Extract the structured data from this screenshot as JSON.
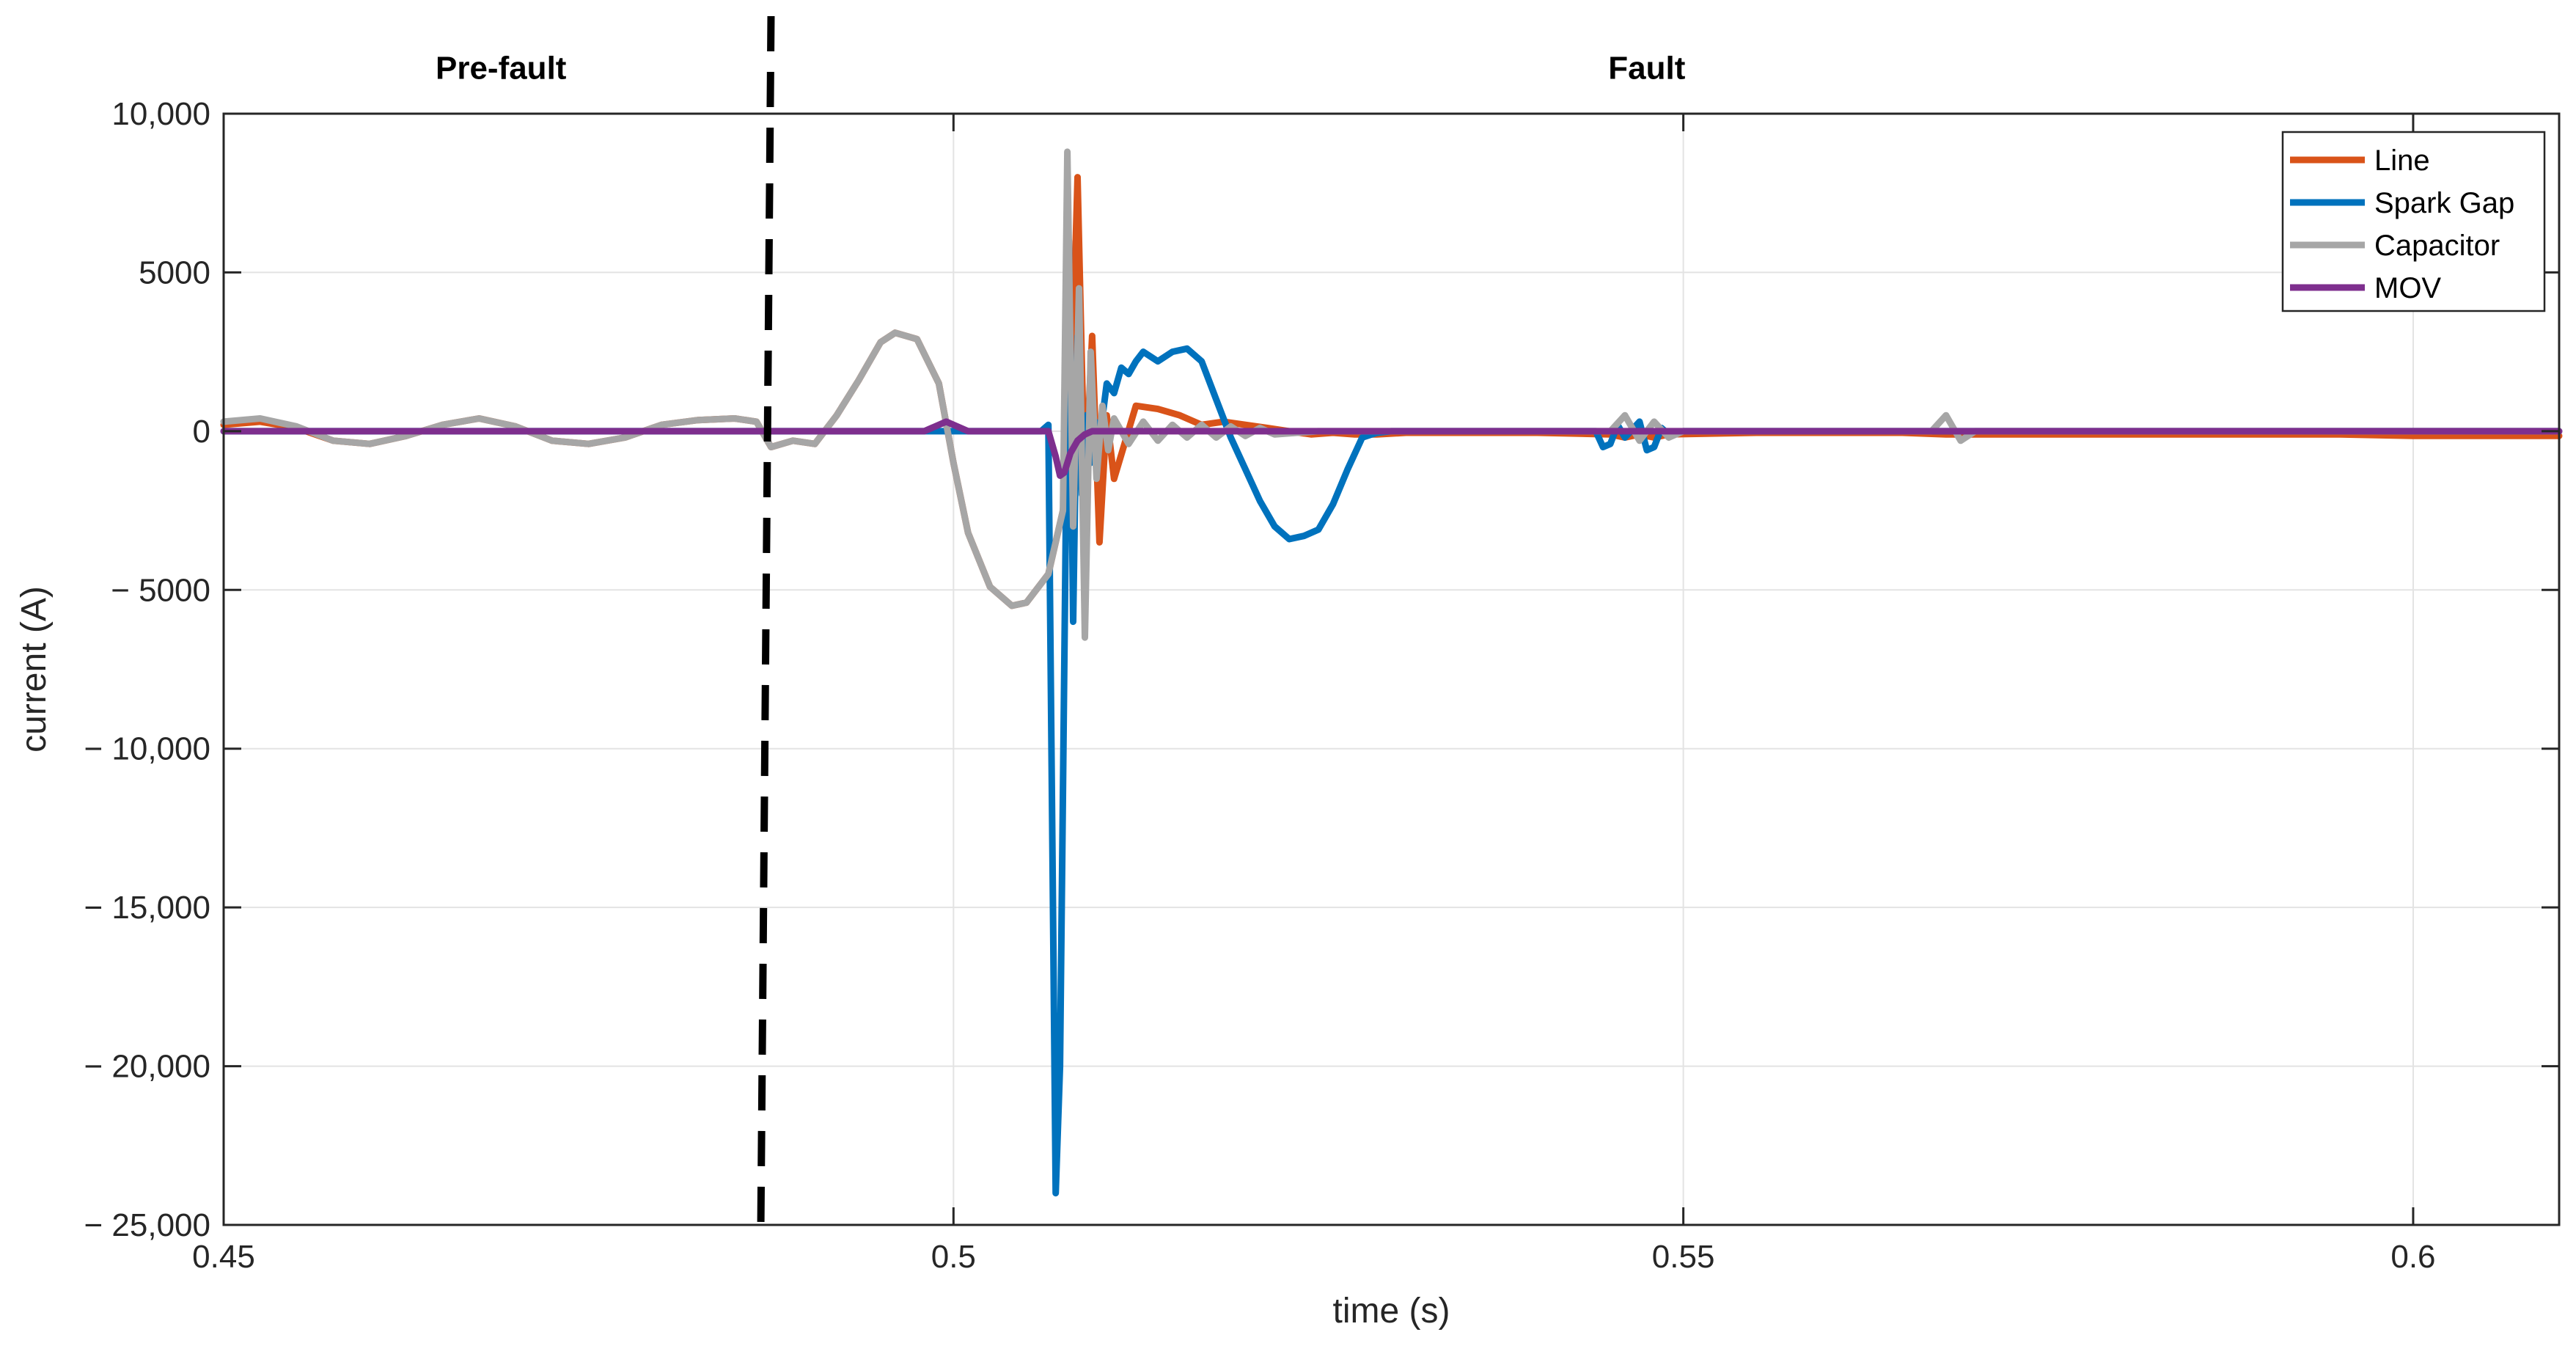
{
  "chart_data": {
    "type": "line",
    "title": "",
    "xlabel": "time (s)",
    "ylabel": "current (A)",
    "xlim": [
      0.45,
      0.61
    ],
    "ylim": [
      -25000,
      10000
    ],
    "xticks": [
      0.45,
      0.5,
      0.55,
      0.6
    ],
    "xtick_labels": [
      "0.45",
      "0.5",
      "0.55",
      "0.6"
    ],
    "yticks": [
      10000,
      5000,
      0,
      -5000,
      -10000,
      -15000,
      -20000,
      -25000
    ],
    "ytick_labels": [
      "10,000",
      "5000",
      "0",
      "− 5000",
      "− 10,000",
      "− 15,000",
      "− 20,000",
      "− 25,000"
    ],
    "grid": true,
    "legend_position": "top-right",
    "fault_marker": {
      "x_top": 0.4875,
      "x_bottom": 0.4868,
      "style": "dashed",
      "color": "#000000"
    },
    "annotations": [
      {
        "text": "Pre-fault",
        "x": 0.469,
        "y": 11100
      },
      {
        "text": "Fault",
        "x": 0.5475,
        "y": 11100
      }
    ],
    "series": [
      {
        "name": "Line",
        "color": "#D95319",
        "x": [
          0.45,
          0.4525,
          0.455,
          0.4575,
          0.46,
          0.4625,
          0.465,
          0.4675,
          0.47,
          0.4725,
          0.475,
          0.4775,
          0.48,
          0.4825,
          0.485,
          0.4865,
          0.4875,
          0.489,
          0.4905,
          0.492,
          0.4935,
          0.495,
          0.496,
          0.4975,
          0.499,
          0.5,
          0.501,
          0.5025,
          0.504,
          0.505,
          0.5065,
          0.5075,
          0.508,
          0.5085,
          0.509,
          0.5095,
          0.51,
          0.5105,
          0.511,
          0.5125,
          0.514,
          0.5155,
          0.517,
          0.5185,
          0.52,
          0.5215,
          0.523,
          0.5245,
          0.526,
          0.5275,
          0.529,
          0.531,
          0.535,
          0.54,
          0.545,
          0.546,
          0.547,
          0.548,
          0.549,
          0.555,
          0.56,
          0.565,
          0.568,
          0.57,
          0.575,
          0.58,
          0.585,
          0.59,
          0.595,
          0.6,
          0.605,
          0.61
        ],
        "y": [
          200,
          300,
          100,
          -300,
          -400,
          -150,
          200,
          400,
          150,
          -300,
          -400,
          -200,
          200,
          350,
          400,
          300,
          -500,
          -300,
          -400,
          500,
          1600,
          2800,
          3100,
          2900,
          1500,
          -1000,
          -3200,
          -4900,
          -5500,
          -5400,
          -4500,
          -2500,
          0,
          8000,
          -2000,
          3000,
          -3500,
          500,
          -1500,
          800,
          700,
          500,
          200,
          300,
          200,
          100,
          0,
          -100,
          -50,
          -100,
          -100,
          -50,
          -50,
          -50,
          -100,
          -200,
          -100,
          -200,
          -100,
          -50,
          -50,
          -50,
          -100,
          -100,
          -100,
          -100,
          -100,
          -100,
          -100,
          -150,
          -150,
          -150
        ]
      },
      {
        "name": "Spark Gap",
        "color": "#0072BD",
        "x": [
          0.45,
          0.48,
          0.5,
          0.506,
          0.5065,
          0.507,
          0.5073,
          0.5076,
          0.5079,
          0.5082,
          0.5085,
          0.5088,
          0.5091,
          0.5094,
          0.5097,
          0.51,
          0.5105,
          0.511,
          0.5115,
          0.512,
          0.5125,
          0.513,
          0.514,
          0.515,
          0.516,
          0.517,
          0.518,
          0.519,
          0.52,
          0.521,
          0.522,
          0.523,
          0.524,
          0.525,
          0.526,
          0.527,
          0.528,
          0.529,
          0.53,
          0.535,
          0.54,
          0.544,
          0.5445,
          0.545,
          0.5455,
          0.546,
          0.547,
          0.5475,
          0.548,
          0.5485,
          0.549,
          0.55,
          0.555,
          0.56,
          0.568,
          0.57,
          0.575,
          0.58,
          0.585,
          0.59,
          0.6,
          0.61
        ],
        "y": [
          0,
          0,
          0,
          0,
          200,
          -24000,
          -20000,
          -7000,
          6000,
          -6000,
          3000,
          -2000,
          500,
          -1000,
          300,
          -300,
          1500,
          1200,
          2000,
          1800,
          2200,
          2500,
          2200,
          2500,
          2600,
          2200,
          1000,
          -200,
          -1200,
          -2200,
          -3000,
          -3400,
          -3300,
          -3100,
          -2300,
          -1200,
          -200,
          -50,
          0,
          0,
          0,
          0,
          -500,
          -400,
          200,
          -200,
          300,
          -600,
          -500,
          100,
          -100,
          0,
          0,
          0,
          0,
          0,
          0,
          0,
          0,
          0,
          0,
          0
        ]
      },
      {
        "name": "Capacitor",
        "color": "#A6A6A6",
        "x": [
          0.45,
          0.4525,
          0.455,
          0.4575,
          0.46,
          0.4625,
          0.465,
          0.4675,
          0.47,
          0.4725,
          0.475,
          0.4775,
          0.48,
          0.4825,
          0.485,
          0.4865,
          0.4875,
          0.489,
          0.4905,
          0.492,
          0.4935,
          0.495,
          0.496,
          0.4975,
          0.499,
          0.5,
          0.501,
          0.5025,
          0.504,
          0.505,
          0.5065,
          0.5075,
          0.5078,
          0.5082,
          0.5086,
          0.509,
          0.5094,
          0.5098,
          0.5102,
          0.5106,
          0.511,
          0.512,
          0.513,
          0.514,
          0.515,
          0.516,
          0.517,
          0.518,
          0.519,
          0.52,
          0.521,
          0.522,
          0.525,
          0.53,
          0.545,
          0.546,
          0.547,
          0.548,
          0.549,
          0.55,
          0.56,
          0.567,
          0.568,
          0.569,
          0.57,
          0.575,
          0.58,
          0.59,
          0.6,
          0.61
        ],
        "y": [
          300,
          400,
          150,
          -300,
          -400,
          -150,
          200,
          400,
          150,
          -300,
          -400,
          -200,
          200,
          350,
          400,
          300,
          -500,
          -300,
          -400,
          500,
          1600,
          2800,
          3100,
          2900,
          1500,
          -1000,
          -3200,
          -4900,
          -5500,
          -5400,
          -4500,
          -2500,
          8800,
          -3000,
          4500,
          -6500,
          2500,
          -1500,
          800,
          -600,
          400,
          -400,
          300,
          -300,
          200,
          -200,
          200,
          -200,
          150,
          -150,
          100,
          -100,
          0,
          0,
          0,
          500,
          -300,
          300,
          -200,
          0,
          0,
          0,
          500,
          -300,
          0,
          0,
          0,
          0,
          0,
          0
        ]
      },
      {
        "name": "MOV",
        "color": "#7E2F8E",
        "x": [
          0.45,
          0.495,
          0.498,
          0.4995,
          0.501,
          0.502,
          0.5065,
          0.507,
          0.5073,
          0.5076,
          0.508,
          0.5085,
          0.509,
          0.5095,
          0.51,
          0.52,
          0.55,
          0.58,
          0.61
        ],
        "y": [
          0,
          0,
          0,
          300,
          0,
          0,
          0,
          -800,
          -1400,
          -1300,
          -700,
          -300,
          -100,
          0,
          0,
          0,
          0,
          0,
          0
        ]
      }
    ]
  }
}
